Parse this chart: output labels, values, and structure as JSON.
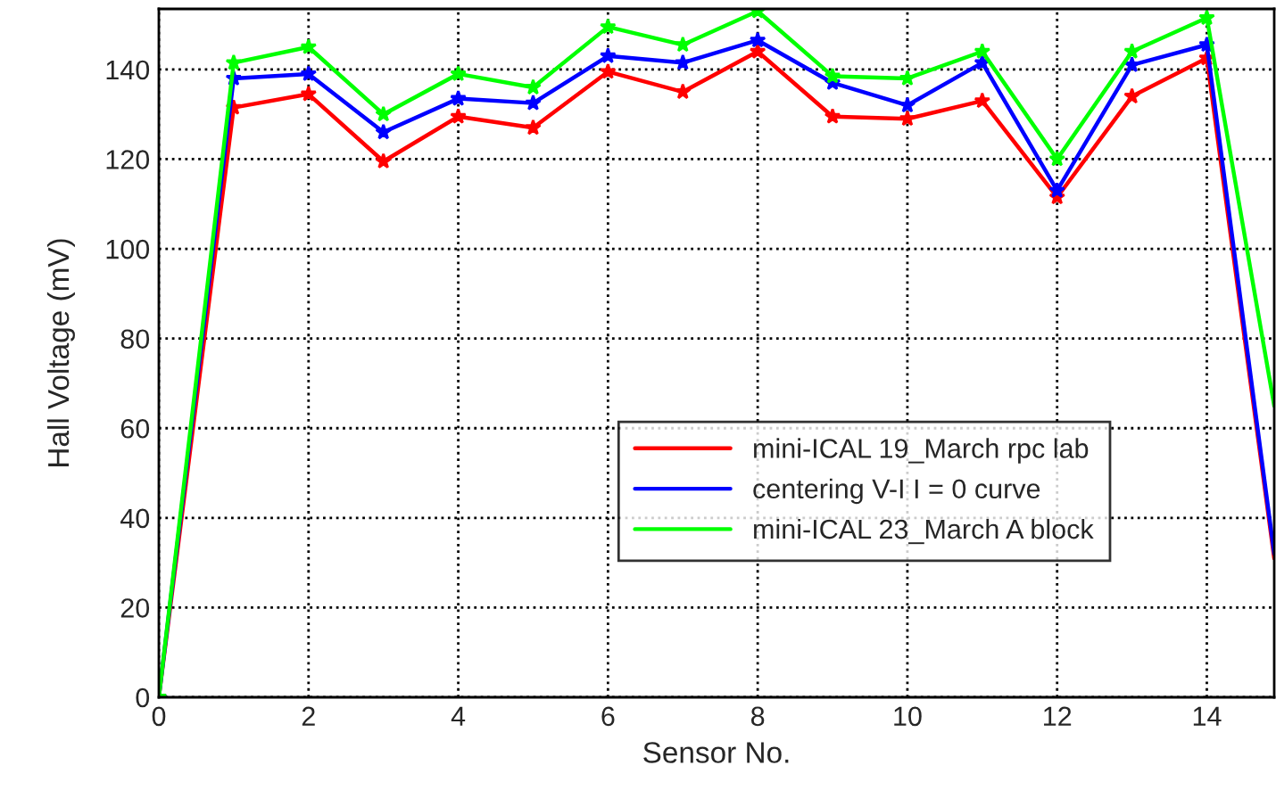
{
  "chart_data": {
    "type": "line",
    "xlabel": "Sensor No.",
    "ylabel": "Hall Voltage (mV)",
    "x": [
      0,
      1,
      2,
      3,
      4,
      5,
      6,
      7,
      8,
      9,
      10,
      11,
      12,
      13,
      14,
      14.9
    ],
    "series": [
      {
        "name": "mini-ICAL 19_March rpc lab",
        "color": "#ff0000",
        "values": [
          0,
          131.5,
          134.5,
          119.5,
          129.5,
          127,
          139.5,
          135,
          144,
          129.5,
          129,
          133,
          111.5,
          134,
          142.5,
          31
        ]
      },
      {
        "name": "centering V-I I = 0 curve",
        "color": "#0000ff",
        "values": [
          0,
          138,
          139,
          126,
          133.5,
          132.5,
          143,
          141.5,
          146.5,
          137,
          132,
          141.5,
          113,
          141,
          145.5,
          32
        ]
      },
      {
        "name": "mini-ICAL 23_March A block",
        "color": "#00ff00",
        "values": [
          0,
          141.5,
          145,
          130,
          139,
          136,
          149.5,
          145.5,
          153,
          138.5,
          138,
          144,
          120,
          144,
          151.5,
          65
        ]
      }
    ],
    "xlim": [
      0,
      14.9
    ],
    "ylim": [
      0,
      153.5
    ],
    "xticks": [
      0,
      2,
      4,
      6,
      8,
      10,
      12,
      14
    ],
    "yticks": [
      0,
      20,
      40,
      60,
      80,
      100,
      120,
      140
    ],
    "grid": true,
    "legend": "right",
    "marker": "star",
    "line_style": "solid"
  }
}
